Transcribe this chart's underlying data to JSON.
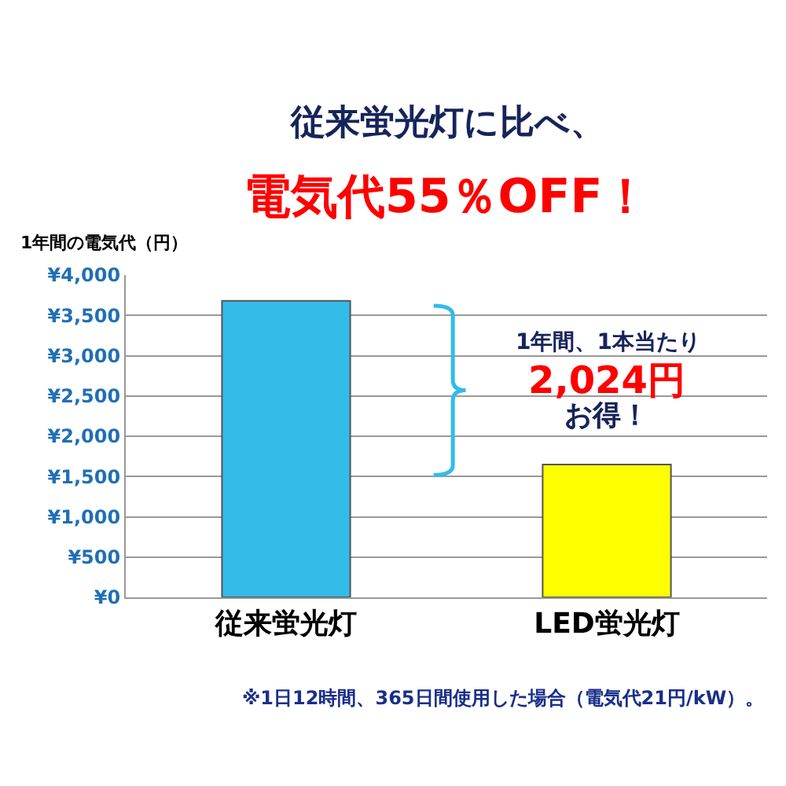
{
  "chart_data": {
    "type": "bar",
    "title": "従来蛍光灯に比べ、",
    "subtitle": "電気代55％OFF！",
    "ylabel": "1年間の電気代（円）",
    "categories": [
      "従来蛍光灯",
      "LED蛍光灯"
    ],
    "values": [
      3680,
      1650
    ],
    "colors": [
      "#33bbea",
      "#ffff00"
    ],
    "ylim": [
      0,
      4000
    ],
    "yticks": [
      {
        "value": 0,
        "label": "¥0"
      },
      {
        "value": 500,
        "label": "¥500"
      },
      {
        "value": 1000,
        "label": "¥1,000"
      },
      {
        "value": 1500,
        "label": "¥1,500"
      },
      {
        "value": 2000,
        "label": "¥2,000"
      },
      {
        "value": 2500,
        "label": "¥2,500"
      },
      {
        "value": 3000,
        "label": "¥3,000"
      },
      {
        "value": 3500,
        "label": "¥3,500"
      },
      {
        "value": 4000,
        "label": "¥4,000"
      }
    ],
    "grid": "y",
    "annotations": [
      "1年間、1本当たり",
      "2,024円",
      "お得！",
      "※1日12時間、365日間使用した場合（電気代21円/kW）。"
    ]
  }
}
